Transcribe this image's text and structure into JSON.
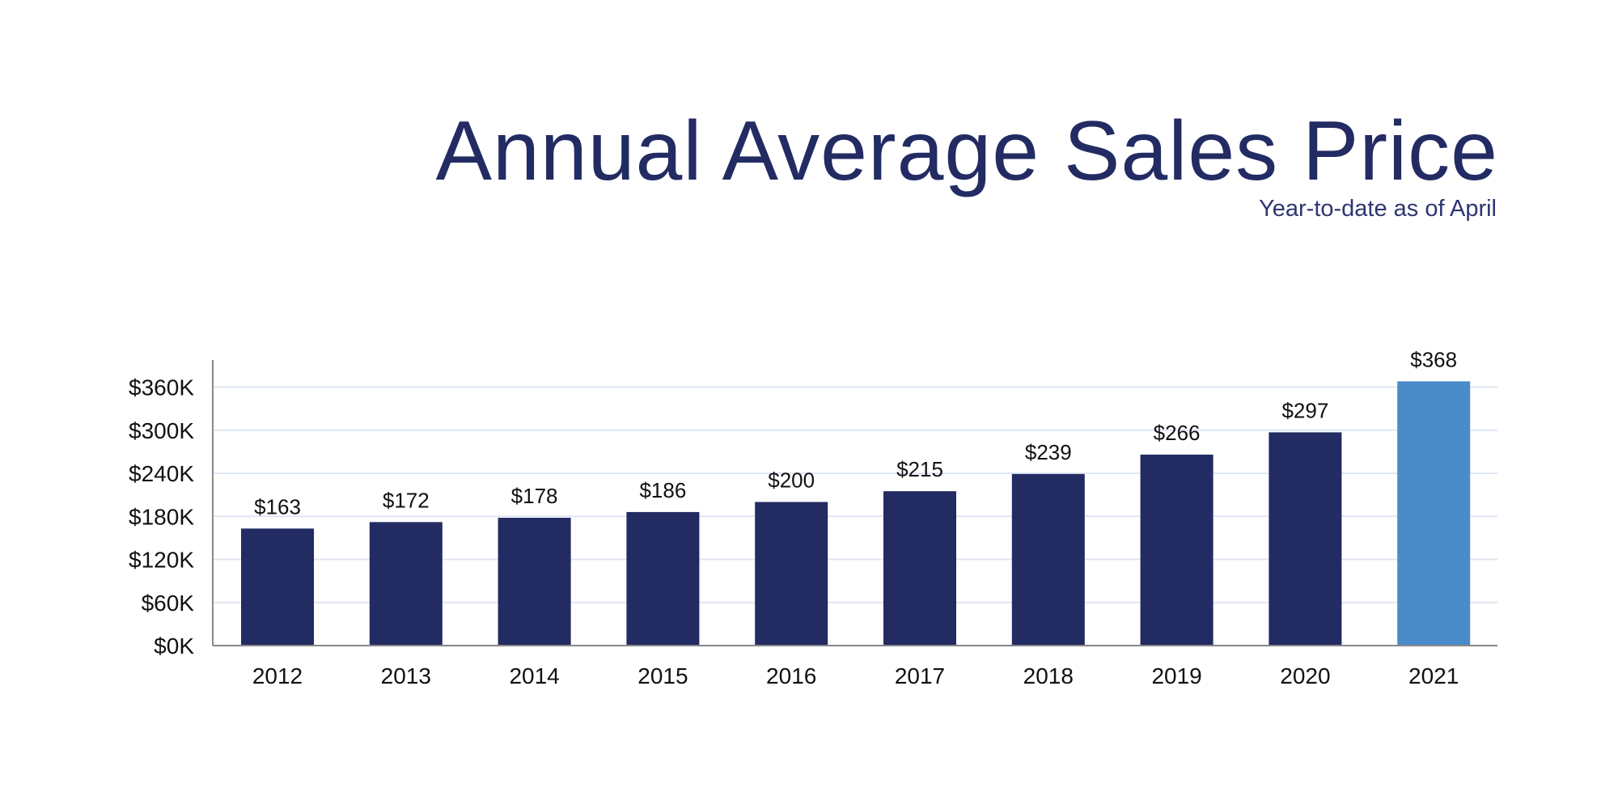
{
  "chart_data": {
    "type": "bar",
    "title": "Annual Average Sales Price",
    "subtitle": "Year-to-date as of April",
    "xlabel": "",
    "ylabel": "",
    "categories": [
      "2012",
      "2013",
      "2014",
      "2015",
      "2016",
      "2017",
      "2018",
      "2019",
      "2020",
      "2021"
    ],
    "values": [
      163,
      172,
      178,
      186,
      200,
      215,
      239,
      266,
      297,
      368
    ],
    "value_labels": [
      "$163",
      "$172",
      "$178",
      "$186",
      "$200",
      "$215",
      "$239",
      "$266",
      "$297",
      "$368"
    ],
    "value_unit": "thousands of dollars",
    "ylim": [
      0,
      400
    ],
    "yticks": [
      0,
      60,
      120,
      180,
      240,
      300,
      360
    ],
    "ytick_labels": [
      "$0K",
      "$60K",
      "$120K",
      "$180K",
      "$240K",
      "$300K",
      "$360K"
    ],
    "grid": true,
    "colors": {
      "default": "#232b63",
      "highlight": "#4a8bc9",
      "grid": "#dfe6f2",
      "axis": "#888888",
      "title": "#232b63"
    },
    "highlight_category": "2021"
  }
}
